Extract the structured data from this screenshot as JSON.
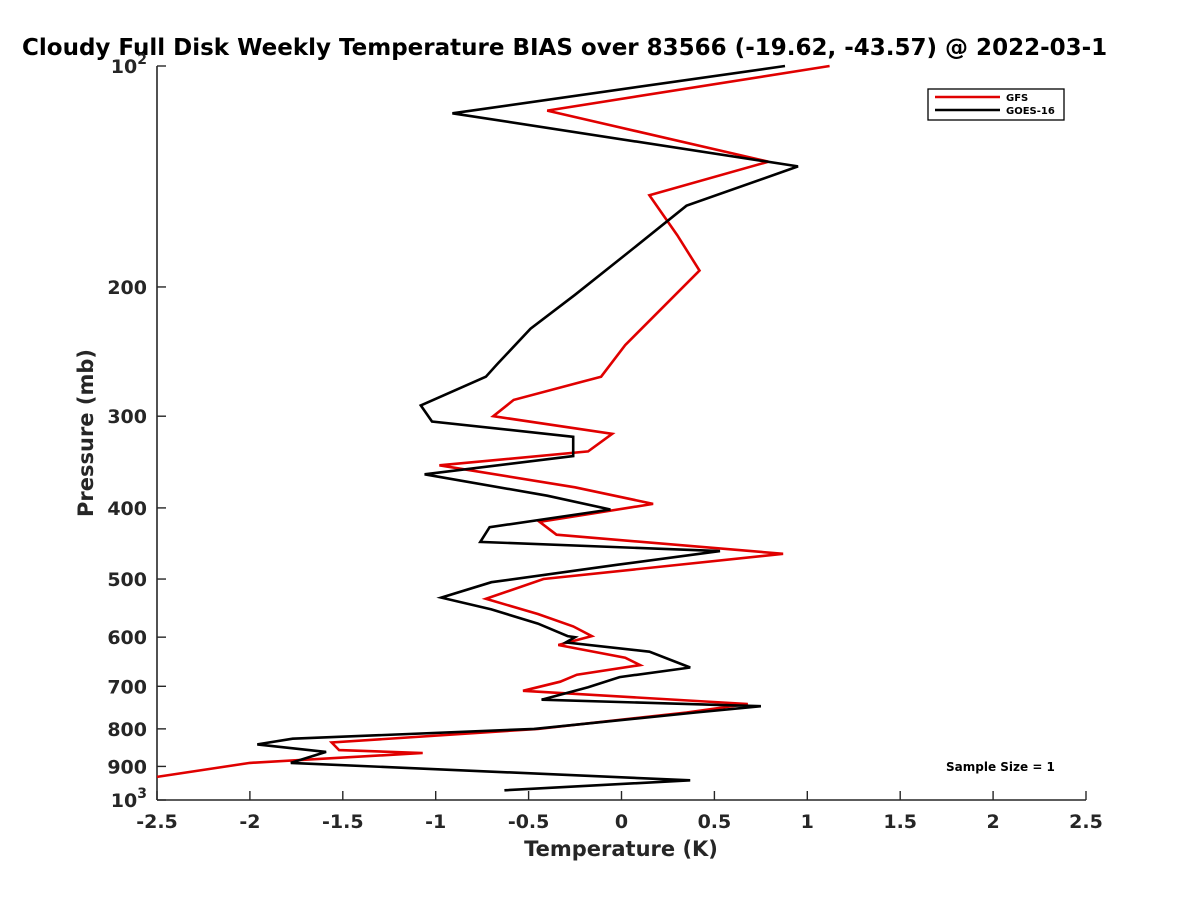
{
  "chart_data": {
    "type": "line",
    "title": "Cloudy Full Disk Weekly Temperature BIAS over 83566 (-19.62, -43.57) @ 2022-03-1",
    "xlabel": "Temperature (K)",
    "ylabel": "Pressure (mb)",
    "xlim": [
      -2.5,
      2.5
    ],
    "ylim": [
      100,
      1000
    ],
    "y_scale": "log",
    "y_reversed": true,
    "grid": false,
    "x_ticks": [
      -2.5,
      -2,
      -1.5,
      -1,
      -0.5,
      0,
      0.5,
      1,
      1.5,
      2,
      2.5
    ],
    "x_tick_labels": [
      "-2.5",
      "-2",
      "-1.5",
      "-1",
      "-0.5",
      "0",
      "0.5",
      "1",
      "1.5",
      "2",
      "2.5"
    ],
    "y_ticks": [
      {
        "value": 100,
        "base": "10",
        "exp": "2"
      },
      {
        "value": 200,
        "label": "200"
      },
      {
        "value": 300,
        "label": "300"
      },
      {
        "value": 400,
        "label": "400"
      },
      {
        "value": 500,
        "label": "500"
      },
      {
        "value": 600,
        "label": "600"
      },
      {
        "value": 700,
        "label": "700"
      },
      {
        "value": 800,
        "label": "800"
      },
      {
        "value": 900,
        "label": "900"
      },
      {
        "value": 1000,
        "base": "10",
        "exp": "3"
      }
    ],
    "legend_position": "top-right",
    "annotation": "Sample Size = 1",
    "series": [
      {
        "name": "GFS",
        "color": "#e00000",
        "points": [
          [
            1.12,
            100
          ],
          [
            -0.4,
            115
          ],
          [
            0.79,
            135
          ],
          [
            0.15,
            150
          ],
          [
            0.3,
            170
          ],
          [
            0.42,
            190
          ],
          [
            0.02,
            240
          ],
          [
            -0.11,
            265
          ],
          [
            -0.58,
            285
          ],
          [
            -0.69,
            300
          ],
          [
            -0.05,
            317
          ],
          [
            -0.18,
            335
          ],
          [
            -0.98,
            350
          ],
          [
            -0.25,
            375
          ],
          [
            0.17,
            395
          ],
          [
            -0.44,
            418
          ],
          [
            -0.35,
            435
          ],
          [
            0.87,
            462
          ],
          [
            -0.42,
            500
          ],
          [
            -0.73,
            532
          ],
          [
            -0.45,
            558
          ],
          [
            -0.26,
            580
          ],
          [
            -0.16,
            598
          ],
          [
            -0.34,
            615
          ],
          [
            0.02,
            640
          ],
          [
            0.1,
            655
          ],
          [
            -0.24,
            675
          ],
          [
            -0.33,
            690
          ],
          [
            -0.53,
            710
          ],
          [
            0.68,
            740
          ],
          [
            0.35,
            760
          ],
          [
            -0.45,
            800
          ],
          [
            -1.56,
            835
          ],
          [
            -1.52,
            855
          ],
          [
            -1.07,
            863
          ],
          [
            -2.0,
            890
          ],
          [
            -2.5,
            930
          ]
        ]
      },
      {
        "name": "GOES-16",
        "color": "#000000",
        "points": [
          [
            0.88,
            100
          ],
          [
            -0.91,
            116
          ],
          [
            0.95,
            137
          ],
          [
            0.35,
            155
          ],
          [
            0.03,
            180
          ],
          [
            -0.25,
            205
          ],
          [
            -0.49,
            228
          ],
          [
            -0.67,
            255
          ],
          [
            -0.73,
            265
          ],
          [
            -1.08,
            290
          ],
          [
            -1.02,
            305
          ],
          [
            -0.26,
            320
          ],
          [
            -0.26,
            340
          ],
          [
            -1.06,
            360
          ],
          [
            -0.4,
            385
          ],
          [
            -0.06,
            402
          ],
          [
            -0.71,
            425
          ],
          [
            -0.76,
            445
          ],
          [
            0.53,
            458
          ],
          [
            -0.02,
            478
          ],
          [
            -0.7,
            505
          ],
          [
            -0.97,
            530
          ],
          [
            -0.7,
            550
          ],
          [
            -0.45,
            575
          ],
          [
            -0.29,
            598
          ],
          [
            -0.25,
            600
          ],
          [
            -0.3,
            610
          ],
          [
            0.15,
            628
          ],
          [
            0.37,
            660
          ],
          [
            -0.01,
            680
          ],
          [
            -0.18,
            702
          ],
          [
            -0.43,
            730
          ],
          [
            0.75,
            745
          ],
          [
            0.4,
            760
          ],
          [
            -0.47,
            800
          ],
          [
            -1.77,
            825
          ],
          [
            -1.96,
            840
          ],
          [
            -1.59,
            860
          ],
          [
            -1.78,
            890
          ],
          [
            0.37,
            940
          ],
          [
            -0.63,
            970
          ]
        ]
      }
    ]
  }
}
